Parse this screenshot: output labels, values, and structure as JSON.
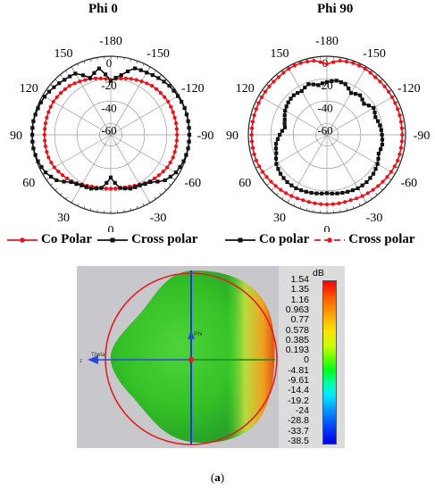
{
  "chart_data": [
    {
      "type": "polar",
      "title": "Phi 0",
      "angle_labels": [
        "-180",
        "-150",
        "-120",
        "-90",
        "-60",
        "-30",
        "0",
        "30",
        "60",
        "90",
        "120",
        "150"
      ],
      "radial_labels": [
        "0",
        "-20",
        "-40",
        "-60"
      ],
      "rlim": [
        -70,
        0
      ],
      "grid": true,
      "legend": "bottom",
      "series": [
        {
          "name": "Co Polar",
          "color": "#e8141c",
          "marker": "circle",
          "angles": [
            -180,
            -170,
            -160,
            -150,
            -140,
            -130,
            -120,
            -110,
            -100,
            -90,
            -80,
            -70,
            -60,
            -50,
            -40,
            -30,
            -20,
            -10,
            0,
            10,
            20,
            30,
            40,
            50,
            60,
            70,
            80,
            90,
            100,
            110,
            120,
            130,
            140,
            150,
            160,
            170
          ],
          "values": [
            -21,
            -19,
            -17,
            -15,
            -13,
            -12,
            -11,
            -11,
            -11,
            -11,
            -11,
            -11,
            -12,
            -14,
            -16,
            -19,
            -21,
            -22,
            -22,
            -22,
            -21,
            -19,
            -16,
            -14,
            -12,
            -11,
            -11,
            -11,
            -11,
            -11,
            -11,
            -12,
            -13,
            -15,
            -17,
            -19
          ]
        },
        {
          "name": "Cross polar",
          "color": "#111111",
          "marker": "square",
          "angles": [
            -180,
            -170,
            -160,
            -150,
            -140,
            -130,
            -120,
            -110,
            -100,
            -90,
            -80,
            -70,
            -60,
            -50,
            -40,
            -30,
            -20,
            -10,
            0,
            10,
            20,
            30,
            40,
            50,
            60,
            70,
            80,
            90,
            100,
            110,
            120,
            130,
            140,
            150,
            160,
            170
          ],
          "values": [
            -22,
            -16,
            -7,
            -6,
            -4,
            -2,
            -1,
            0,
            0,
            0,
            0,
            -1,
            -3,
            -7,
            -15,
            -18,
            -19,
            -22,
            -32,
            -22,
            -19,
            -18,
            -15,
            -7,
            -3,
            -1,
            0,
            0,
            0,
            -1,
            -2,
            -4,
            -6,
            -7,
            -16,
            -10
          ]
        }
      ]
    },
    {
      "type": "polar",
      "title": "Phi 90",
      "angle_labels": [
        "-180",
        "-150",
        "-120",
        "-90",
        "-60",
        "-30",
        "0",
        "30",
        "60",
        "90",
        "120",
        "150"
      ],
      "radial_labels": [
        "0",
        "-20",
        "-40",
        "-60"
      ],
      "rlim": [
        -70,
        0
      ],
      "grid": true,
      "legend": "bottom",
      "series": [
        {
          "name": "Co polar",
          "color": "#111111",
          "marker": "square",
          "angles": [
            -180,
            -170,
            -160,
            -150,
            -140,
            -130,
            -120,
            -110,
            -100,
            -90,
            -80,
            -70,
            -60,
            -50,
            -40,
            -30,
            -20,
            -10,
            0,
            10,
            20,
            30,
            40,
            50,
            60,
            70,
            80,
            90,
            100,
            110,
            120,
            130,
            140,
            150,
            160,
            170
          ],
          "values": [
            -23,
            -21,
            -22,
            -27,
            -24,
            -27,
            -22,
            -24,
            -22,
            -21,
            -20,
            -21,
            -18,
            -16,
            -15,
            -15,
            -16,
            -17,
            -18,
            -17,
            -16,
            -15,
            -15,
            -16,
            -18,
            -22,
            -24,
            -28,
            -32,
            -30,
            -27,
            -25,
            -24,
            -25,
            -22,
            -25
          ]
        },
        {
          "name": "Cross polar",
          "color": "#e8141c",
          "marker": "circle",
          "angles": [
            -180,
            -170,
            -160,
            -150,
            -140,
            -130,
            -120,
            -110,
            -100,
            -90,
            -80,
            -70,
            -60,
            -50,
            -40,
            -30,
            -20,
            -10,
            0,
            10,
            20,
            30,
            40,
            50,
            60,
            70,
            80,
            90,
            100,
            110,
            120,
            130,
            140,
            150,
            160,
            170
          ],
          "values": [
            -7,
            -3,
            -2,
            -2,
            -3,
            -3,
            -3,
            -3,
            -3,
            -3,
            -3,
            -3,
            -4,
            -5,
            -6,
            -7,
            -8,
            -8,
            -8,
            -8,
            -8,
            -7,
            -6,
            -5,
            -4,
            -3,
            -3,
            -3,
            -3,
            -3,
            -3,
            -3,
            -3,
            -2,
            -2,
            -3
          ]
        }
      ]
    },
    {
      "type": "3d-pattern",
      "color_scale_unit": "dB",
      "color_scale_labels": [
        "1.54",
        "1.35",
        "1.16",
        "0.963",
        "0.77",
        "0.578",
        "0.385",
        "0.193",
        "0",
        "-4.81",
        "-9.61",
        "-14.4",
        "-19.2",
        "-24",
        "-28.8",
        "-33.7",
        "-38.5"
      ],
      "axis_labels": [
        "Phi",
        "Theta",
        "z"
      ]
    }
  ],
  "caption": "(a)",
  "legend1": {
    "co": "Co Polar",
    "cross": "Cross polar"
  },
  "legend2": {
    "co": "Co polar",
    "cross": "Cross polar"
  },
  "colors": {
    "red": "#e8141c",
    "black": "#111111",
    "green": "#33c026"
  }
}
